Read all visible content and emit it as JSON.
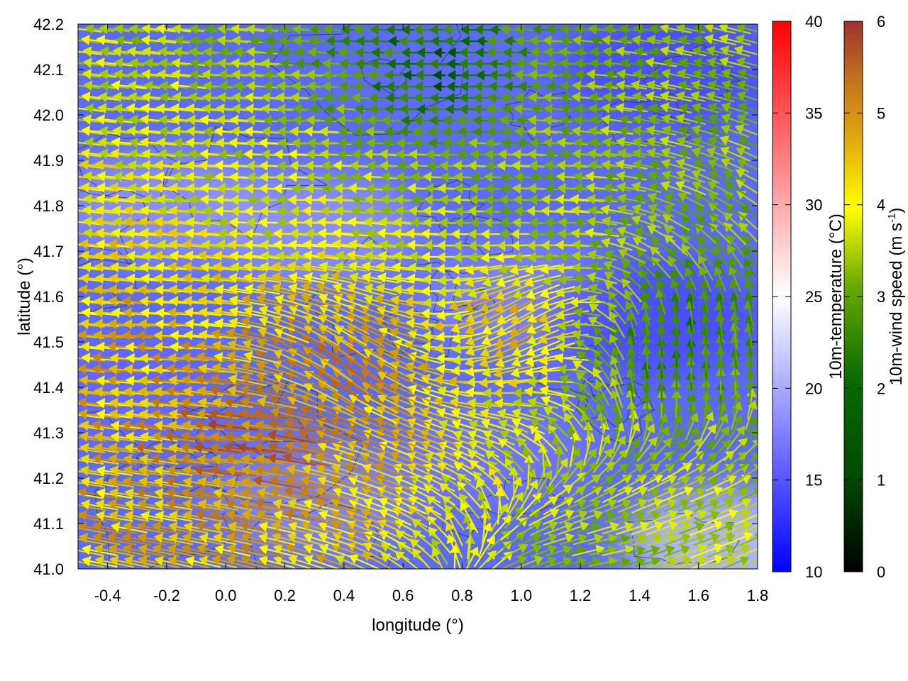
{
  "chart_data": {
    "type": "heatmap",
    "xlabel": "longitude (°)",
    "ylabel": "latitude (°)",
    "xlim": [
      -0.5,
      1.8
    ],
    "ylim": [
      41.0,
      42.2
    ],
    "x_ticks": [
      "-0.4",
      "-0.2",
      "0.0",
      "0.2",
      "0.4",
      "0.6",
      "0.8",
      "1.0",
      "1.2",
      "1.4",
      "1.6",
      "1.8"
    ],
    "y_ticks": [
      "41.0",
      "41.1",
      "41.2",
      "41.3",
      "41.4",
      "41.5",
      "41.6",
      "41.7",
      "41.8",
      "41.9",
      "42.0",
      "42.1",
      "42.2"
    ],
    "grid": true,
    "temperature_colorbar": {
      "label": "10m-temperature (°C)",
      "range": [
        10,
        40
      ],
      "ticks": [
        "10",
        "15",
        "20",
        "25",
        "30",
        "35",
        "40"
      ],
      "colors": [
        "#0000ff",
        "#ffffff",
        "#ff0000"
      ]
    },
    "wind_colorbar": {
      "label_main": "10m-wind speed (m s",
      "label_sup": "-1",
      "label_end": ")",
      "range": [
        0,
        6
      ],
      "ticks": [
        "0",
        "1",
        "2",
        "3",
        "4",
        "5",
        "6"
      ],
      "colors": [
        "#000000",
        "#006400",
        "#6aaa00",
        "#ffff00",
        "#d4a000",
        "#b8641e",
        "#a02828"
      ]
    },
    "temperature_field_note_regions": [
      {
        "lon": -0.2,
        "lat": 41.8,
        "temp": 19
      },
      {
        "lon": 0.3,
        "lat": 41.75,
        "temp": 19
      },
      {
        "lon": 1.0,
        "lat": 41.6,
        "temp": 18
      },
      {
        "lon": 1.7,
        "lat": 41.05,
        "temp": 22
      },
      {
        "lon": 1.5,
        "lat": 42.1,
        "temp": 14
      },
      {
        "lon": 1.45,
        "lat": 41.55,
        "temp": 14
      },
      {
        "lon": 0.3,
        "lat": 41.15,
        "temp": 18
      },
      {
        "lon": 0.9,
        "lat": 41.25,
        "temp": 17
      },
      {
        "lon": -0.35,
        "lat": 41.4,
        "temp": 16
      }
    ],
    "wind_field": {
      "grid_lon_step": 0.05,
      "grid_lat_step": 0.025,
      "dominant_direction": "westward",
      "regions": [
        {
          "lon": 0.1,
          "lat": 41.3,
          "speed": 5.5,
          "dir_deg": 175
        },
        {
          "lon": 0.4,
          "lat": 41.45,
          "speed": 5.0,
          "dir_deg": 140
        },
        {
          "lon": -0.2,
          "lat": 41.5,
          "speed": 4.5,
          "dir_deg": 178
        },
        {
          "lon": 0.2,
          "lat": 41.8,
          "speed": 3.5,
          "dir_deg": 180
        },
        {
          "lon": 1.0,
          "lat": 41.8,
          "speed": 3.0,
          "dir_deg": 178
        },
        {
          "lon": 1.5,
          "lat": 41.5,
          "speed": 1.5,
          "dir_deg": 90
        },
        {
          "lon": 1.6,
          "lat": 41.1,
          "speed": 3.5,
          "dir_deg": 20
        },
        {
          "lon": 0.7,
          "lat": 42.1,
          "speed": 1.2,
          "dir_deg": 180
        },
        {
          "lon": 1.0,
          "lat": 41.55,
          "speed": 4.5,
          "dir_deg": 215
        },
        {
          "lon": 1.3,
          "lat": 41.0,
          "speed": 3.0,
          "dir_deg": 10
        }
      ]
    }
  }
}
